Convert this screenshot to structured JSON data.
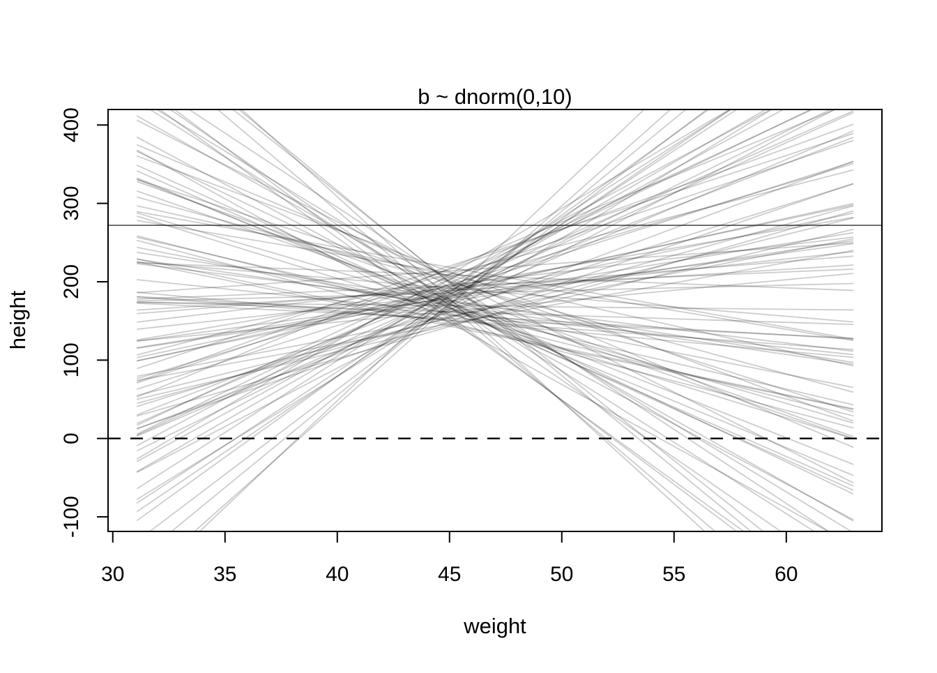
{
  "figure": {
    "background": "#ffffff",
    "axis_color": "#000000",
    "text_color": "#000000"
  },
  "chart_data": {
    "type": "line",
    "title": "b ~ dnorm(0,10)",
    "xlabel": "weight",
    "ylabel": "height",
    "xlim": [
      29.79,
      64.26
    ],
    "ylim": [
      -118.6,
      419.8
    ],
    "x_ticks": [
      30,
      35,
      40,
      45,
      50,
      55,
      60
    ],
    "y_ticks": [
      -100,
      0,
      100,
      200,
      300,
      400
    ],
    "grid": false,
    "legend": false,
    "line_color": "#000000",
    "line_alpha": 0.2,
    "line_width": 1.8,
    "x_line_range": [
      31.07,
      62.99
    ],
    "x_center": 45,
    "reference_lines": [
      {
        "y": 272,
        "style": "solid"
      },
      {
        "y": 0,
        "style": "dashed"
      }
    ],
    "lines_model": "height = a + b * (weight - 45)",
    "lines": [
      [
        171.9,
        -11.4
      ],
      [
        182.6,
        3.1
      ],
      [
        199.4,
        -7.8
      ],
      [
        164.2,
        14.9
      ],
      [
        150.3,
        -2.6
      ],
      [
        205.8,
        9.7
      ],
      [
        177.1,
        -18.2
      ],
      [
        186.5,
        6.3
      ],
      [
        161.7,
        -0.9
      ],
      [
        193.2,
        12.5
      ],
      [
        218.4,
        -5.1
      ],
      [
        142.8,
        8.2
      ],
      [
        175.6,
        -13.7
      ],
      [
        188.9,
        1.8
      ],
      [
        167.3,
        17.6
      ],
      [
        201.1,
        -9.3
      ],
      [
        179.8,
        4.6
      ],
      [
        156.4,
        -21.5
      ],
      [
        184.7,
        11.1
      ],
      [
        170.2,
        -4.2
      ],
      [
        209.6,
        7.4
      ],
      [
        147.9,
        -15.8
      ],
      [
        191.3,
        2.3
      ],
      [
        176.8,
        19.4
      ],
      [
        163.5,
        -6.7
      ],
      [
        197.7,
        13.8
      ],
      [
        153.1,
        -1.4
      ],
      [
        212.9,
        -10.6
      ],
      [
        181.4,
        5.9
      ],
      [
        168.9,
        -24.3
      ],
      [
        189.6,
        9.1
      ],
      [
        174.3,
        -3.5
      ],
      [
        202.5,
        15.2
      ],
      [
        159.8,
        -8.9
      ],
      [
        185.2,
        0.7
      ],
      [
        171.1,
        21.7
      ],
      [
        206.3,
        -12.1
      ],
      [
        144.6,
        6.8
      ],
      [
        192.8,
        -17.4
      ],
      [
        178.5,
        3.9
      ],
      [
        165.9,
        -5.6
      ],
      [
        215.7,
        10.3
      ],
      [
        151.2,
        -2.1
      ],
      [
        187.4,
        16.5
      ],
      [
        173.6,
        -19.8
      ],
      [
        196.1,
        8.6
      ],
      [
        158.3,
        -7.2
      ],
      [
        183.9,
        12.9
      ],
      [
        169.4,
        -0.3
      ],
      [
        204.2,
        -14.5
      ],
      [
        146.5,
        5.2
      ],
      [
        190.7,
        18.3
      ],
      [
        177.9,
        -9.9
      ],
      [
        162.1,
        2.7
      ],
      [
        199.9,
        -22.8
      ],
      [
        154.7,
        7.9
      ],
      [
        211.3,
        -4.8
      ],
      [
        180.6,
        14.1
      ],
      [
        166.8,
        -11.9
      ],
      [
        194.5,
        1.2
      ],
      [
        172.4,
        23.5
      ],
      [
        207.8,
        -6.4
      ],
      [
        149.1,
        9.8
      ],
      [
        186.1,
        -16.2
      ],
      [
        175.0,
        4.3
      ],
      [
        160.9,
        -3.0
      ],
      [
        217.2,
        11.8
      ],
      [
        152.6,
        -20.7
      ],
      [
        188.2,
        6.1
      ],
      [
        170.8,
        -8.4
      ],
      [
        203.4,
        13.4
      ],
      [
        157.5,
        -1.7
      ],
      [
        182.1,
        20.6
      ],
      [
        167.7,
        -13.0
      ],
      [
        195.8,
        3.4
      ],
      [
        143.3,
        -5.9
      ],
      [
        209.1,
        16.9
      ],
      [
        178.0,
        -26.1
      ],
      [
        164.8,
        8.9
      ],
      [
        191.9,
        -2.4
      ],
      [
        173.0,
        12.2
      ],
      [
        200.6,
        -18.9
      ],
      [
        155.9,
        5.5
      ],
      [
        185.8,
        -10.2
      ],
      [
        169.9,
        25.4
      ],
      [
        213.8,
        2.0
      ],
      [
        148.4,
        -7.5
      ],
      [
        187.9,
        15.6
      ],
      [
        176.2,
        -4.4
      ],
      [
        161.3,
        10.7
      ],
      [
        198.3,
        -23.6
      ],
      [
        153.8,
        7.1
      ],
      [
        208.7,
        -1.1
      ],
      [
        179.3,
        18.8
      ],
      [
        166.0,
        -12.6
      ],
      [
        193.9,
        4.9
      ],
      [
        171.5,
        -15.3
      ],
      [
        220.1,
        9.4
      ],
      [
        145.7,
        -6.0
      ],
      [
        184.1,
        27.2
      ]
    ]
  }
}
